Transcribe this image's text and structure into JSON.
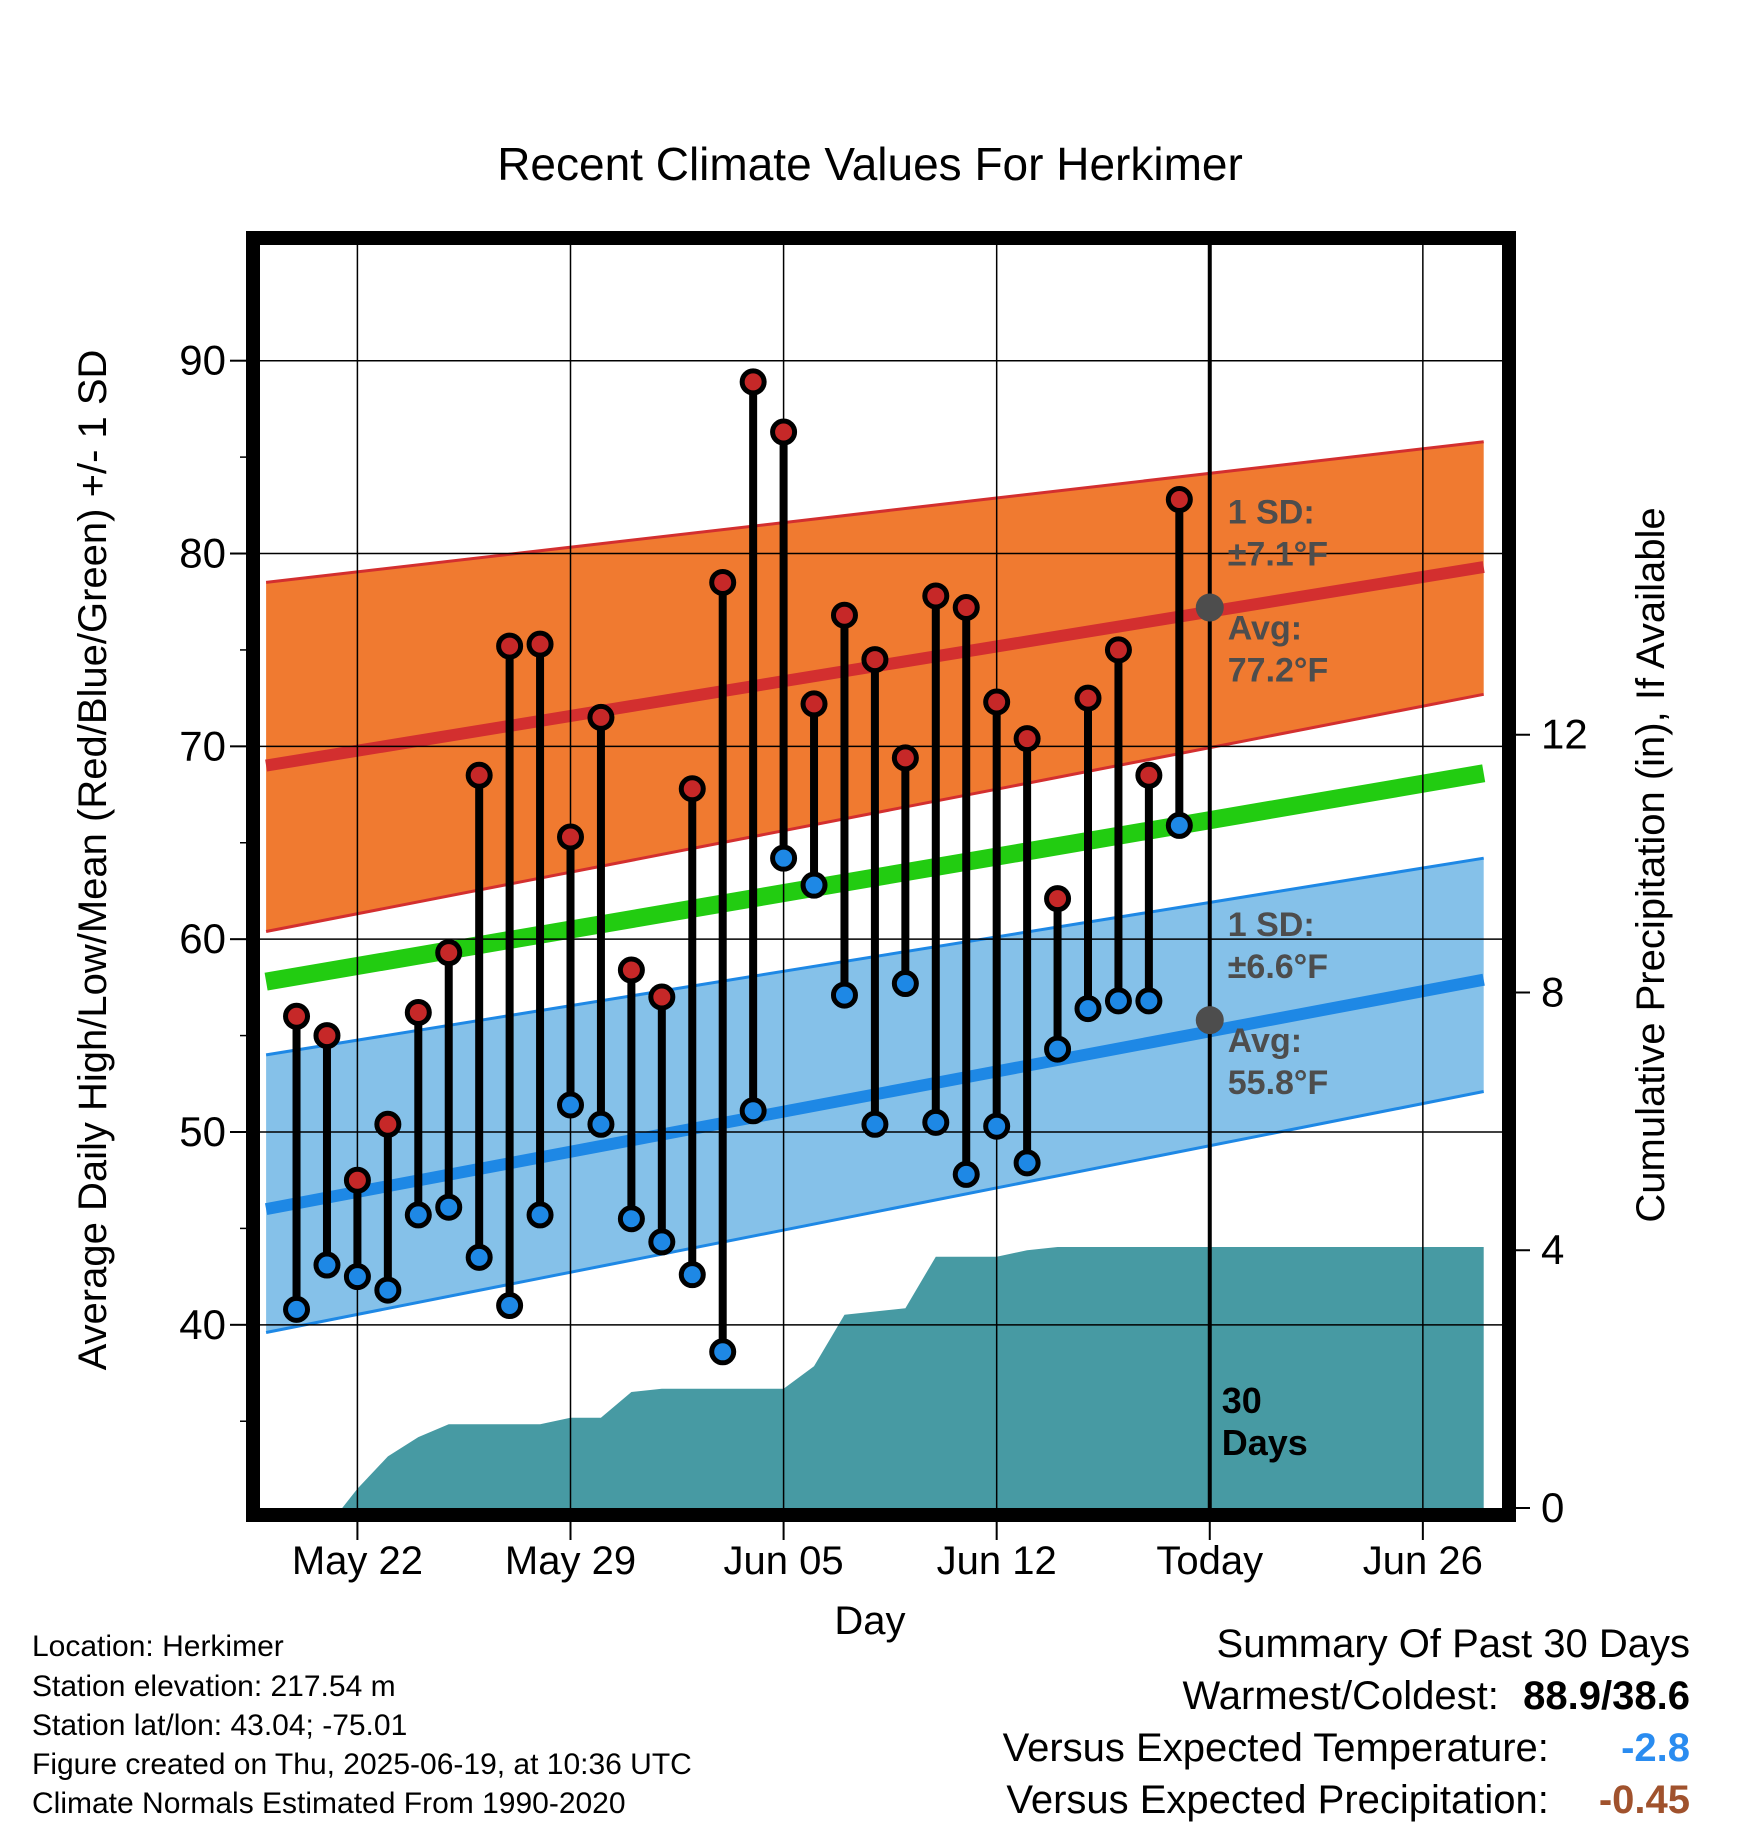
{
  "chart_data": {
    "type": "line",
    "title": "Recent Climate Values For Herkimer",
    "xlabel": "Day",
    "ylabel": "Average Daily High/Low/Mean (Red/Blue/Green) +/- 1 SD",
    "y2label": "Cumulative Precipitation (in), If Available",
    "ylim": [
      30.5,
      96
    ],
    "y2lim": [
      0,
      19.6
    ],
    "yticks": [
      40,
      50,
      60,
      70,
      80,
      90
    ],
    "y2ticks": [
      0,
      4,
      8,
      12
    ],
    "xlim": [
      -3.2,
      37.6
    ],
    "xticks": [
      {
        "day": 0,
        "label": "May 22"
      },
      {
        "day": 7,
        "label": "May 29"
      },
      {
        "day": 14,
        "label": "Jun 05"
      },
      {
        "day": 21,
        "label": "Jun 12"
      },
      {
        "day": 28,
        "label": "Today"
      },
      {
        "day": 35,
        "label": "Jun 26"
      }
    ],
    "today_day": 28,
    "today_label": "30 Days",
    "grid": true,
    "days": [
      -2,
      -1,
      0,
      1,
      2,
      3,
      4,
      5,
      6,
      7,
      8,
      9,
      10,
      11,
      12,
      13,
      14,
      15,
      16,
      17,
      18,
      19,
      20,
      21,
      22,
      23,
      24,
      25,
      26,
      27
    ],
    "series": [
      {
        "name": "High",
        "color": "#c62828",
        "values": [
          56.0,
          55.0,
          47.5,
          50.4,
          56.2,
          59.3,
          68.5,
          75.2,
          75.3,
          65.3,
          71.5,
          58.4,
          57.0,
          67.8,
          78.5,
          88.9,
          86.3,
          72.2,
          76.8,
          74.5,
          69.4,
          77.8,
          77.2,
          72.3,
          70.4,
          62.1,
          72.5,
          75.0,
          68.5,
          82.8
        ]
      },
      {
        "name": "Low",
        "color": "#1e88e5",
        "values": [
          40.8,
          43.1,
          42.5,
          41.8,
          45.7,
          46.1,
          43.5,
          41.0,
          45.7,
          51.4,
          50.4,
          45.5,
          44.3,
          42.6,
          38.6,
          51.1,
          64.2,
          62.8,
          57.1,
          50.4,
          57.7,
          50.5,
          47.8,
          50.3,
          48.4,
          54.3,
          56.4,
          56.8,
          56.8,
          65.9
        ]
      }
    ],
    "normals": {
      "start_day": -3,
      "end_day": 37,
      "high_avg": [
        69.0,
        79.3
      ],
      "high_plus_sd": [
        78.5,
        85.8
      ],
      "high_minus_sd": [
        60.4,
        72.7
      ],
      "low_avg": [
        46.0,
        57.9
      ],
      "low_plus_sd": [
        54.0,
        64.2
      ],
      "low_minus_sd": [
        39.6,
        52.1
      ],
      "mean_avg": [
        57.8,
        68.6
      ]
    },
    "precip": {
      "days": [
        -3,
        -0.5,
        0,
        1,
        2,
        3,
        4,
        5,
        6,
        7,
        8,
        9,
        10,
        11,
        12,
        13,
        14,
        15,
        16,
        17,
        18,
        19,
        20,
        21,
        22,
        23,
        24,
        25,
        37
      ],
      "values": [
        0,
        0,
        0.3,
        0.8,
        1.1,
        1.3,
        1.3,
        1.3,
        1.3,
        1.4,
        1.4,
        1.8,
        1.85,
        1.85,
        1.85,
        1.85,
        1.85,
        2.2,
        3.0,
        3.05,
        3.1,
        3.9,
        3.9,
        3.9,
        4.0,
        4.05,
        4.05,
        4.05,
        4.05
      ]
    },
    "annotations": [
      {
        "label_top": "1 SD:",
        "label_bottom": "±7.1°F"
      },
      {
        "label_top": "Avg:",
        "label_bottom": "77.2°F",
        "value": 77.2
      },
      {
        "label_top": "1 SD:",
        "label_bottom": "±6.6°F"
      },
      {
        "label_top": "Avg:",
        "label_bottom": "55.8°F",
        "value": 55.8
      }
    ]
  },
  "info": {
    "location": "Location: Herkimer",
    "elevation": "Station elevation: 217.54 m",
    "latlon": "Station lat/lon: 43.04; -75.01",
    "created": "Figure created on Thu, 2025-06-19, at 10:36 UTC",
    "normals": "Climate Normals Estimated From 1990-2020"
  },
  "summary": {
    "heading": "Summary Of Past 30 Days",
    "warmest_coldest_label": "Warmest/Coldest:",
    "warmest_coldest_value": "88.9/38.6",
    "temp_label": "Versus Expected Temperature:",
    "temp_value": "-2.8",
    "temp_color": "#2a8cf0",
    "precip_label": "Versus Expected Precipitation:",
    "precip_value": "-0.45",
    "precip_color": "#a0522d"
  }
}
